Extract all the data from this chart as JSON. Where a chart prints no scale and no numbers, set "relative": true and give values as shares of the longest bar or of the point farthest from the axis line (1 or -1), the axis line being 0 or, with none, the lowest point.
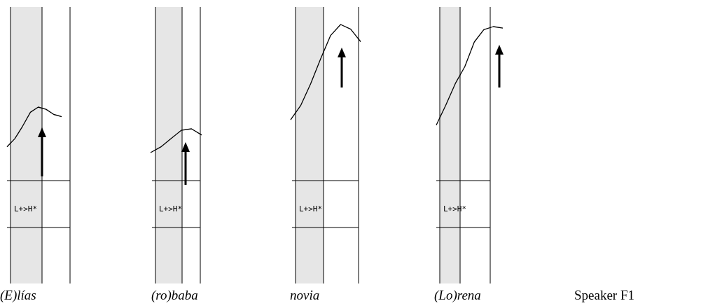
{
  "chart_data": [
    {
      "type": "line",
      "relative": true,
      "categories": [
        null,
        null,
        null,
        null,
        null,
        null,
        null,
        null
      ],
      "values": [
        0.46,
        0.57,
        0.74,
        0.93,
        1,
        0.97,
        0.9,
        0.87
      ],
      "color": "#000000",
      "xlabel": "(E)lías",
      "annotations": [
        "L+>H*"
      ]
    },
    {
      "type": "line",
      "relative": true,
      "categories": [
        null,
        null,
        null,
        null,
        null,
        null
      ],
      "values": [
        0.54,
        0.65,
        0.81,
        0.97,
        1,
        0.88
      ],
      "color": "#000000",
      "xlabel": "(ro)baba",
      "annotations": [
        "L+>H*"
      ]
    },
    {
      "type": "line",
      "relative": true,
      "categories": [
        null,
        null,
        null,
        null,
        null,
        null,
        null,
        null
      ],
      "values": [
        0.39,
        0.48,
        0.62,
        0.78,
        0.93,
        1,
        0.97,
        0.89
      ],
      "color": "#000000",
      "xlabel": "novia",
      "annotations": [
        "L+>H*"
      ]
    },
    {
      "type": "line",
      "relative": true,
      "categories": [
        null,
        null,
        null,
        null,
        null,
        null,
        null,
        null
      ],
      "values": [
        0.36,
        0.49,
        0.63,
        0.74,
        0.9,
        0.98,
        1,
        0.99
      ],
      "color": "#000000",
      "xlabel": "(Lo)rena",
      "annotations": [
        "L+>H*",
        "Speaker F1"
      ]
    }
  ]
}
